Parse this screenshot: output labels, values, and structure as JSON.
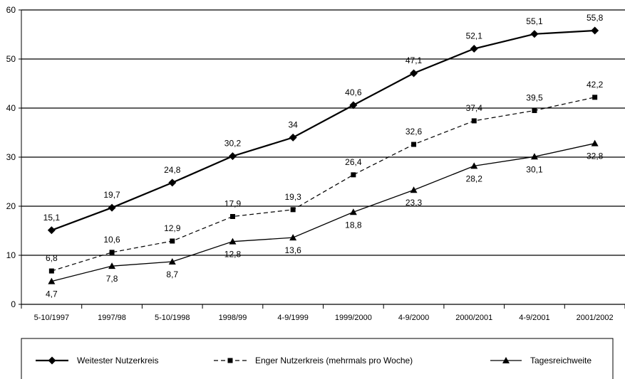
{
  "chart_data": {
    "type": "line",
    "title": "",
    "xlabel": "",
    "ylabel": "",
    "ylim": [
      0,
      60
    ],
    "yticks": [
      "0",
      "10",
      "20",
      "30",
      "40",
      "50",
      "60"
    ],
    "grid": "horizontal",
    "legend_position": "bottom",
    "categories": [
      "5-10/1997",
      "1997/98",
      "5-10/1998",
      "1998/99",
      "4-9/1999",
      "1999/2000",
      "4-9/2000",
      "2000/2001",
      "4-9/2001",
      "2001/2002"
    ],
    "series": [
      {
        "name": "Weitester Nutzerkreis",
        "marker": "diamond",
        "line": "solid-thick",
        "values": [
          15.1,
          19.7,
          24.8,
          30.2,
          34,
          40.6,
          47.1,
          52.1,
          55.1,
          55.8
        ],
        "labels": [
          "15,1",
          "19,7",
          "24,8",
          "30,2",
          "34",
          "40,6",
          "47,1",
          "52,1",
          "55,1",
          "55,8"
        ]
      },
      {
        "name": "Enger Nutzerkreis (mehrmals pro Woche)",
        "marker": "square",
        "line": "dashed",
        "values": [
          6.8,
          10.6,
          12.9,
          17.9,
          19.3,
          26.4,
          32.6,
          37.4,
          39.5,
          42.2
        ],
        "labels": [
          "6,8",
          "10,6",
          "12,9",
          "17,9",
          "19,3",
          "26,4",
          "32,6",
          "37,4",
          "39,5",
          "42,2"
        ]
      },
      {
        "name": "Tagesreichweite",
        "marker": "triangle",
        "line": "solid",
        "values": [
          4.7,
          7.8,
          8.7,
          12.8,
          13.6,
          18.8,
          23.3,
          28.2,
          30.1,
          32.8
        ],
        "labels": [
          "4,7",
          "7,8",
          "8,7",
          "12,8",
          "13,6",
          "18,8",
          "23,3",
          "28,2",
          "30,1",
          "32,8"
        ]
      }
    ]
  }
}
